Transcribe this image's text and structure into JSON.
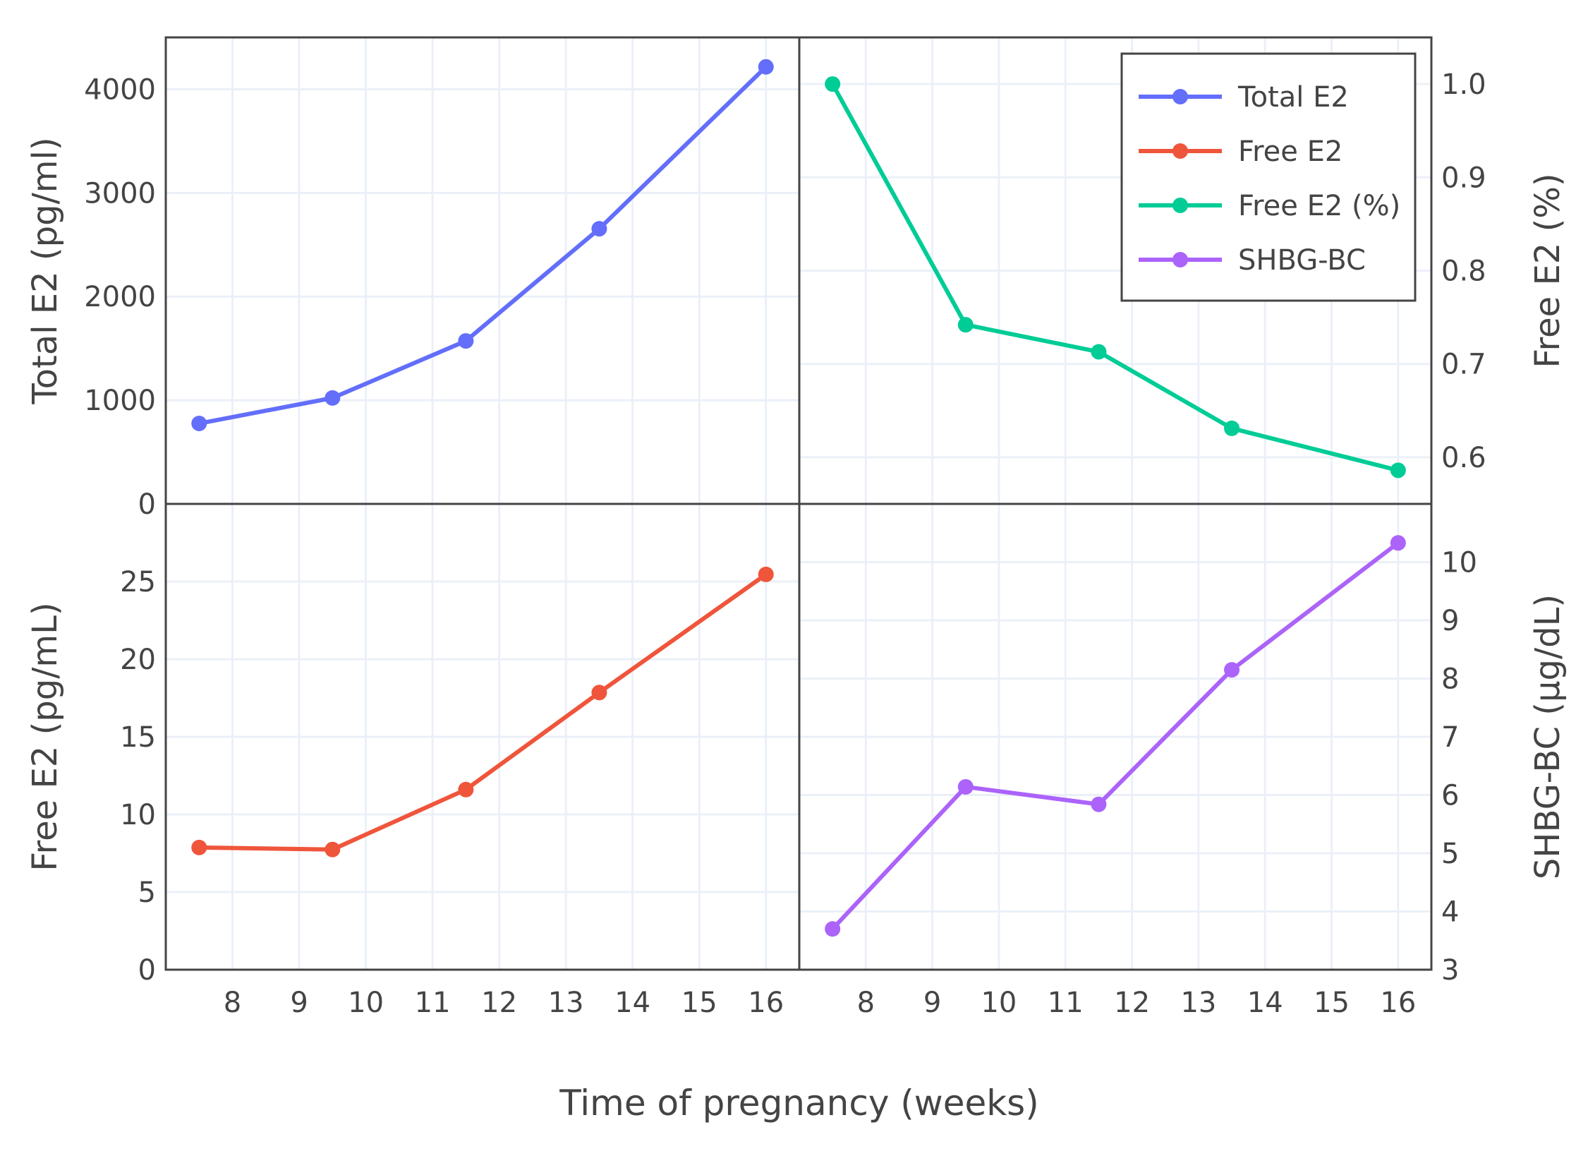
{
  "chart_data": {
    "type": "line",
    "xlabel": "Time of pregnancy (weeks)",
    "xlim": [
      7,
      16.5
    ],
    "xticks": [
      8,
      9,
      10,
      11,
      12,
      13,
      14,
      15,
      16
    ],
    "grid": true,
    "legend_placement": "top-right",
    "x": [
      7.5,
      9.5,
      11.5,
      13.5,
      16
    ],
    "panels": [
      {
        "position": "top-left",
        "series_name": "Total E2",
        "ylabel": "Total E2 (pg/ml)",
        "ylim": [
          0,
          4500
        ],
        "yticks": [
          0,
          1000,
          2000,
          3000,
          4000
        ],
        "yaxis_side": "left",
        "values": [
          776,
          1022,
          1572,
          2654,
          4216
        ],
        "color": "#636efa"
      },
      {
        "position": "top-right",
        "series_name": "Free E2 (%)",
        "ylabel": "Free E2 (%)",
        "ylim": [
          0.55,
          1.05
        ],
        "yticks": [
          0.6,
          0.7,
          0.8,
          0.9,
          1.0
        ],
        "ytick_labels": [
          "0.6",
          "0.7",
          "0.8",
          "0.9",
          "1.0"
        ],
        "yaxis_side": "right",
        "values": [
          1.0,
          0.742,
          0.713,
          0.631,
          0.586
        ],
        "color": "#00cc96"
      },
      {
        "position": "bottom-left",
        "series_name": "Free E2",
        "ylabel": "Free E2 (pg/mL)",
        "ylim": [
          0,
          30
        ],
        "yticks": [
          0,
          5,
          10,
          15,
          20,
          25
        ],
        "yaxis_side": "left",
        "values": [
          7.87,
          7.74,
          11.6,
          17.85,
          25.46
        ],
        "color": "#ef553b"
      },
      {
        "position": "bottom-right",
        "series_name": "SHBG-BC",
        "ylabel": "SHBG-BC (µg/dL)",
        "ylim": [
          3,
          11
        ],
        "yticks": [
          3,
          4,
          5,
          6,
          7,
          8,
          9,
          10
        ],
        "yaxis_side": "right",
        "values": [
          3.7,
          6.14,
          5.84,
          8.15,
          10.33
        ],
        "color": "#ab63fa"
      }
    ],
    "legend": [
      {
        "name": "Total E2",
        "color": "#636efa"
      },
      {
        "name": "Free E2",
        "color": "#ef553b"
      },
      {
        "name": "Free E2 (%)",
        "color": "#00cc96"
      },
      {
        "name": "SHBG-BC",
        "color": "#ab63fa"
      }
    ]
  }
}
